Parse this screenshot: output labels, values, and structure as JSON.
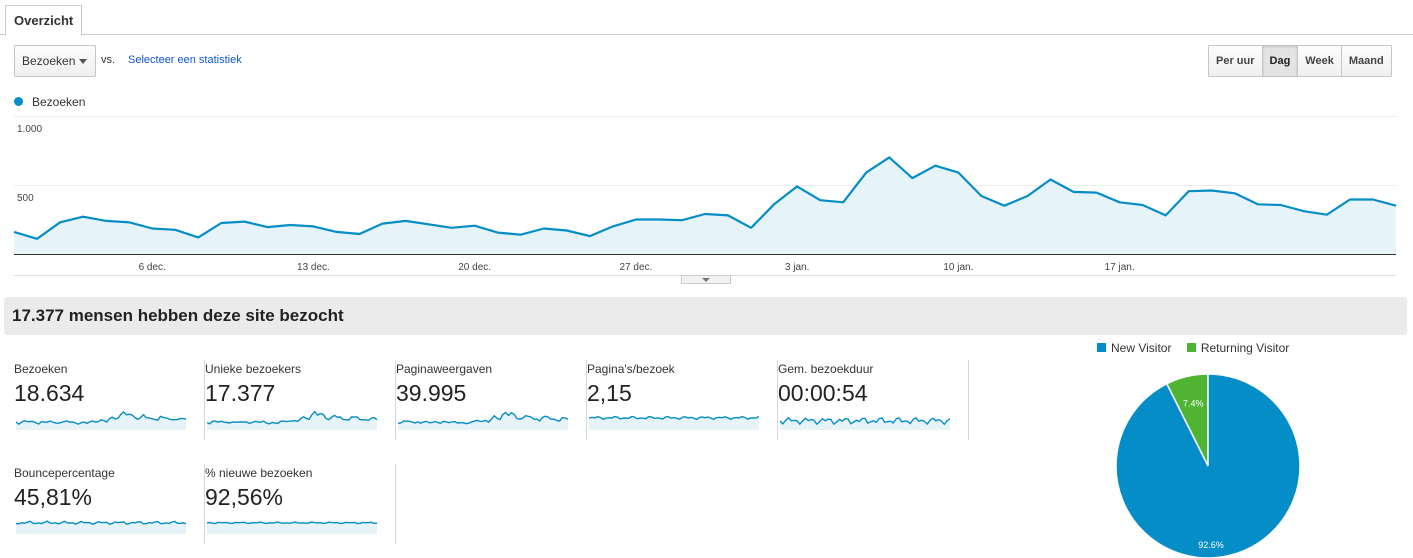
{
  "tabs": [
    {
      "label": "Overzicht"
    }
  ],
  "toolbar": {
    "metric_select": "Bezoeken",
    "vs_label": "vs.",
    "select_stat_link": "Selecteer een statistiek",
    "period_buttons": [
      "Per uur",
      "Dag",
      "Week",
      "Maand"
    ],
    "active_period": "Dag"
  },
  "colors": {
    "series": "#058dc7",
    "area": "#e6f3f9",
    "returning": "#50b432"
  },
  "chart_data": {
    "type": "area",
    "legend": "Bezoeken",
    "ylim": [
      0,
      1000
    ],
    "yticks": [
      "1.000",
      "500"
    ],
    "ytick_values": [
      1000,
      500
    ],
    "xtick_labels": [
      "6 dec.",
      "13 dec.",
      "20 dec.",
      "27 dec.",
      "3 jan.",
      "10 jan.",
      "17 jan."
    ],
    "xtick_indices": [
      6,
      13,
      20,
      27,
      34,
      41,
      48
    ],
    "values": [
      160,
      110,
      230,
      270,
      240,
      230,
      185,
      175,
      120,
      225,
      235,
      195,
      210,
      200,
      160,
      145,
      220,
      240,
      215,
      190,
      205,
      155,
      140,
      185,
      170,
      130,
      200,
      250,
      250,
      245,
      290,
      280,
      190,
      360,
      490,
      390,
      375,
      590,
      700,
      550,
      640,
      590,
      420,
      350,
      420,
      540,
      450,
      445,
      375,
      355,
      280,
      455,
      460,
      440,
      360,
      355,
      310,
      285,
      395,
      395,
      350
    ],
    "grid": true
  },
  "summary": {
    "title": "17.377 mensen hebben deze site bezocht"
  },
  "metrics": [
    {
      "label": "Bezoeken",
      "value": "18.634"
    },
    {
      "label": "Unieke bezoekers",
      "value": "17.377"
    },
    {
      "label": "Paginaweergaven",
      "value": "39.995"
    },
    {
      "label": "Pagina's/bezoek",
      "value": "2,15"
    },
    {
      "label": "Gem. bezoekduur",
      "value": "00:00:54"
    },
    {
      "label": "Bouncepercentage",
      "value": "45,81%"
    },
    {
      "label": "% nieuwe bezoeken",
      "value": "92,56%"
    }
  ],
  "pie": {
    "type": "pie",
    "legend": [
      {
        "name": "New Visitor",
        "color": "#058dc7"
      },
      {
        "name": "Returning Visitor",
        "color": "#50b432"
      }
    ],
    "slices": [
      {
        "name": "New Visitor",
        "value": 92.6,
        "label": "92.6%"
      },
      {
        "name": "Returning Visitor",
        "value": 7.4,
        "label": "7.4%"
      }
    ]
  }
}
